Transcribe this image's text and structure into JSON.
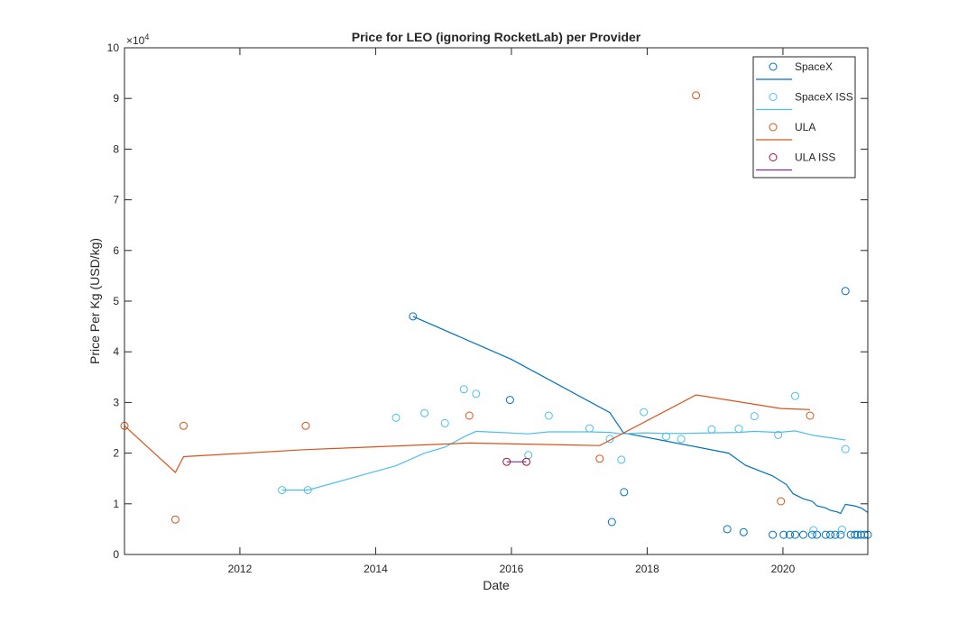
{
  "chart_data": {
    "type": "scatter",
    "title": "Price for LEO (ignoring RocketLab) per Provider",
    "xlabel": "Date",
    "ylabel": "Price Per Kg (USD/kg)",
    "y_exponent_label": "×10",
    "y_exponent_power": "4",
    "xlim": [
      2010.3,
      2021.25
    ],
    "ylim": [
      0,
      100000
    ],
    "x_ticks": [
      2012,
      2014,
      2016,
      2018,
      2020
    ],
    "x_tick_labels": [
      "2012",
      "2014",
      "2016",
      "2018",
      "2020"
    ],
    "y_ticks": [
      0,
      10000,
      20000,
      30000,
      40000,
      50000,
      60000,
      70000,
      80000,
      90000,
      100000
    ],
    "y_tick_labels": [
      "0",
      "1",
      "2",
      "3",
      "4",
      "5",
      "6",
      "7",
      "8",
      "9",
      "10"
    ],
    "grid": false,
    "legend_position": "top-right",
    "series": [
      {
        "name": "SpaceX",
        "color": "#0072BD",
        "points": [
          [
            2014.55,
            47000
          ],
          [
            2015.98,
            30500
          ],
          [
            2017.48,
            6400
          ],
          [
            2017.66,
            12300
          ],
          [
            2019.18,
            5000
          ],
          [
            2019.42,
            4400
          ],
          [
            2019.85,
            3900
          ],
          [
            2020.01,
            3900
          ],
          [
            2020.1,
            3900
          ],
          [
            2020.18,
            3900
          ],
          [
            2020.3,
            3900
          ],
          [
            2020.43,
            3900
          ],
          [
            2020.5,
            3900
          ],
          [
            2020.63,
            3900
          ],
          [
            2020.7,
            3900
          ],
          [
            2020.77,
            3900
          ],
          [
            2020.85,
            3900
          ],
          [
            2020.92,
            52000
          ],
          [
            2021.0,
            3900
          ],
          [
            2021.06,
            3900
          ],
          [
            2021.1,
            3900
          ],
          [
            2021.15,
            3900
          ],
          [
            2021.2,
            3900
          ],
          [
            2021.25,
            3900
          ]
        ],
        "trend": [
          [
            2014.55,
            47000
          ],
          [
            2016.0,
            38500
          ],
          [
            2017.45,
            28000
          ],
          [
            2017.65,
            24000
          ],
          [
            2019.2,
            20000
          ],
          [
            2019.45,
            17600
          ],
          [
            2019.85,
            15500
          ],
          [
            2020.05,
            13800
          ],
          [
            2020.15,
            12000
          ],
          [
            2020.3,
            11000
          ],
          [
            2020.43,
            10500
          ],
          [
            2020.5,
            9600
          ],
          [
            2020.63,
            9200
          ],
          [
            2020.7,
            8700
          ],
          [
            2020.8,
            8400
          ],
          [
            2020.85,
            8100
          ],
          [
            2020.92,
            9900
          ],
          [
            2021.05,
            9600
          ],
          [
            2021.15,
            9200
          ],
          [
            2021.25,
            8300
          ]
        ]
      },
      {
        "name": "SpaceX ISS",
        "color": "#4DBEEE",
        "points": [
          [
            2012.62,
            12700
          ],
          [
            2013.0,
            12700
          ],
          [
            2014.3,
            27000
          ],
          [
            2014.72,
            27900
          ],
          [
            2015.02,
            25900
          ],
          [
            2015.3,
            32600
          ],
          [
            2015.48,
            31700
          ],
          [
            2016.25,
            19600
          ],
          [
            2016.55,
            27400
          ],
          [
            2017.15,
            24900
          ],
          [
            2017.45,
            22800
          ],
          [
            2017.62,
            18700
          ],
          [
            2017.95,
            28100
          ],
          [
            2018.28,
            23300
          ],
          [
            2018.5,
            22800
          ],
          [
            2018.95,
            24700
          ],
          [
            2019.35,
            24800
          ],
          [
            2019.58,
            27300
          ],
          [
            2019.93,
            23600
          ],
          [
            2020.18,
            31300
          ],
          [
            2020.45,
            4800
          ],
          [
            2020.87,
            4900
          ],
          [
            2020.92,
            20800
          ]
        ],
        "trend": [
          [
            2012.62,
            12700
          ],
          [
            2013.0,
            12700
          ],
          [
            2014.3,
            17500
          ],
          [
            2014.72,
            20000
          ],
          [
            2015.02,
            21200
          ],
          [
            2015.3,
            23200
          ],
          [
            2015.48,
            24300
          ],
          [
            2016.25,
            23800
          ],
          [
            2016.55,
            24200
          ],
          [
            2017.15,
            24200
          ],
          [
            2017.45,
            24100
          ],
          [
            2017.62,
            23800
          ],
          [
            2017.95,
            24000
          ],
          [
            2018.28,
            23900
          ],
          [
            2018.5,
            23900
          ],
          [
            2018.95,
            24000
          ],
          [
            2019.35,
            24100
          ],
          [
            2019.58,
            24300
          ],
          [
            2019.93,
            24100
          ],
          [
            2020.18,
            24400
          ],
          [
            2020.45,
            23500
          ],
          [
            2020.92,
            22600
          ]
        ]
      },
      {
        "name": "ULA",
        "color": "#D95319",
        "points": [
          [
            2010.3,
            25400
          ],
          [
            2011.05,
            6900
          ],
          [
            2011.17,
            25400
          ],
          [
            2012.97,
            25400
          ],
          [
            2015.38,
            27400
          ],
          [
            2017.3,
            18900
          ],
          [
            2018.72,
            90600
          ],
          [
            2019.97,
            10500
          ],
          [
            2020.4,
            27400
          ]
        ],
        "trend": [
          [
            2010.3,
            25400
          ],
          [
            2011.05,
            16200
          ],
          [
            2011.17,
            19300
          ],
          [
            2012.97,
            20700
          ],
          [
            2015.38,
            22000
          ],
          [
            2017.3,
            21500
          ],
          [
            2018.72,
            31500
          ],
          [
            2019.97,
            28800
          ],
          [
            2020.4,
            28600
          ]
        ]
      },
      {
        "name": "ULA ISS",
        "color": "#7E2F8E",
        "marker_color": "#A2142F",
        "points": [
          [
            2015.93,
            18300
          ],
          [
            2016.22,
            18300
          ]
        ],
        "trend": [
          [
            2015.93,
            18300
          ],
          [
            2016.22,
            18300
          ]
        ]
      }
    ]
  }
}
